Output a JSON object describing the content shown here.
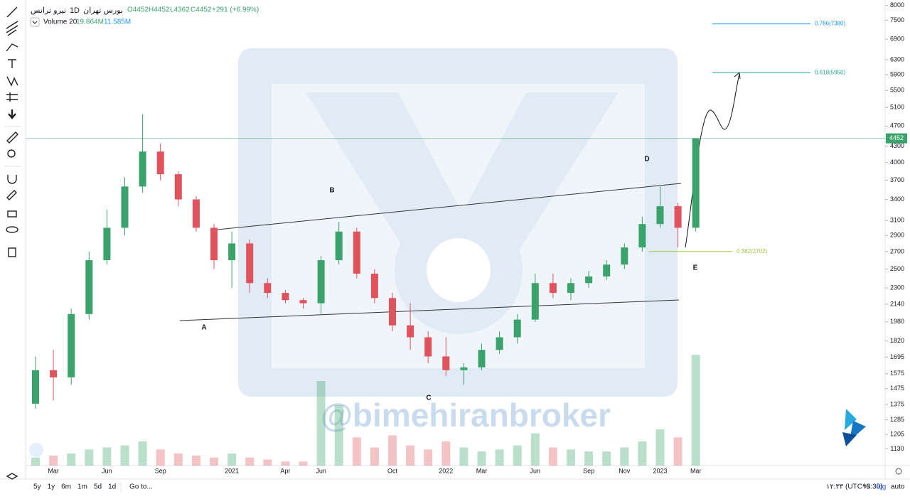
{
  "header": {
    "exchange": "بورس تهران",
    "symbol": "نیرو ترانس",
    "interval": "1D",
    "open": "O4452",
    "high": "H4452",
    "low": "L4362",
    "close": "C4452",
    "change": "+291 (+6.99%)",
    "volume_label": "Volume 20",
    "volume_value": "19.864M",
    "volume_ma": "11.585M"
  },
  "watermark": "@bimehiranbroker",
  "bottom_bar": {
    "ranges": [
      "5y",
      "1y",
      "6m",
      "1m",
      "5d",
      "1d"
    ],
    "goto": "Go to...",
    "clock": "۱۲:۳۳ (UTC+3:30)",
    "percent": "%",
    "log": "log",
    "auto": "auto"
  },
  "chart_data": {
    "type": "candlestick",
    "log_scale": true,
    "up_color": "#3aa36b",
    "down_color": "#e0525c",
    "categories": [
      null,
      "Mar",
      null,
      null,
      "Jun",
      null,
      null,
      "Sep",
      null,
      null,
      null,
      "2021",
      null,
      null,
      "Apr",
      null,
      "Jun",
      null,
      null,
      null,
      "Oct",
      null,
      null,
      "2022",
      null,
      "Mar",
      null,
      null,
      "Jun",
      null,
      null,
      "Sep",
      null,
      "Nov",
      null,
      "2023",
      null,
      "Mar"
    ],
    "candles": [
      {
        "open": 1380,
        "high": 1700,
        "low": 1350,
        "close": 1600
      },
      {
        "open": 1600,
        "high": 1750,
        "low": 1400,
        "close": 1550
      },
      {
        "open": 1550,
        "high": 2100,
        "low": 1500,
        "close": 2050
      },
      {
        "open": 2050,
        "high": 2700,
        "low": 2000,
        "close": 2600
      },
      {
        "open": 2600,
        "high": 3250,
        "low": 2550,
        "close": 3000
      },
      {
        "open": 3000,
        "high": 3750,
        "low": 2900,
        "close": 3600
      },
      {
        "open": 3600,
        "high": 4950,
        "low": 3500,
        "close": 4200
      },
      {
        "open": 4200,
        "high": 4350,
        "low": 3700,
        "close": 3800
      },
      {
        "open": 3800,
        "high": 3850,
        "low": 3300,
        "close": 3400
      },
      {
        "open": 3400,
        "high": 3450,
        "low": 2950,
        "close": 3000
      },
      {
        "open": 3000,
        "high": 3050,
        "low": 2500,
        "close": 2600
      },
      {
        "open": 2600,
        "high": 2950,
        "low": 2300,
        "close": 2800
      },
      {
        "open": 2800,
        "high": 2850,
        "low": 2250,
        "close": 2350
      },
      {
        "open": 2350,
        "high": 2400,
        "low": 2200,
        "close": 2250
      },
      {
        "open": 2250,
        "high": 2280,
        "low": 2150,
        "close": 2180
      },
      {
        "open": 2180,
        "high": 2200,
        "low": 2100,
        "close": 2150
      },
      {
        "open": 2150,
        "high": 2650,
        "low": 2050,
        "close": 2600
      },
      {
        "open": 2600,
        "high": 3080,
        "low": 2550,
        "close": 2950
      },
      {
        "open": 2950,
        "high": 3000,
        "low": 2400,
        "close": 2450
      },
      {
        "open": 2450,
        "high": 2500,
        "low": 2150,
        "close": 2200
      },
      {
        "open": 2200,
        "high": 2250,
        "low": 1900,
        "close": 1950
      },
      {
        "open": 1950,
        "high": 2150,
        "low": 1750,
        "close": 1850
      },
      {
        "open": 1850,
        "high": 1900,
        "low": 1650,
        "close": 1700
      },
      {
        "open": 1700,
        "high": 1850,
        "low": 1560,
        "close": 1600
      },
      {
        "open": 1600,
        "high": 1650,
        "low": 1500,
        "close": 1620
      },
      {
        "open": 1620,
        "high": 1800,
        "low": 1600,
        "close": 1750
      },
      {
        "open": 1750,
        "high": 1900,
        "low": 1720,
        "close": 1850
      },
      {
        "open": 1850,
        "high": 2050,
        "low": 1800,
        "close": 2000
      },
      {
        "open": 2000,
        "high": 2450,
        "low": 1980,
        "close": 2350
      },
      {
        "open": 2350,
        "high": 2450,
        "low": 2200,
        "close": 2250
      },
      {
        "open": 2250,
        "high": 2400,
        "low": 2180,
        "close": 2350
      },
      {
        "open": 2350,
        "high": 2480,
        "low": 2300,
        "close": 2420
      },
      {
        "open": 2420,
        "high": 2600,
        "low": 2380,
        "close": 2550
      },
      {
        "open": 2550,
        "high": 2800,
        "low": 2500,
        "close": 2750
      },
      {
        "open": 2750,
        "high": 3150,
        "low": 2700,
        "close": 3050
      },
      {
        "open": 3050,
        "high": 3600,
        "low": 3000,
        "close": 3300
      },
      {
        "open": 3300,
        "high": 3350,
        "low": 2750,
        "close": 3000
      },
      {
        "open": 3000,
        "high": 4452,
        "low": 2950,
        "close": 4452
      }
    ],
    "volume": [
      4,
      5,
      6,
      8,
      9,
      10,
      12,
      8,
      6,
      5,
      4,
      6,
      4,
      3,
      2,
      2,
      42,
      30,
      14,
      9,
      15,
      10,
      8,
      12,
      9,
      7,
      8,
      10,
      16,
      9,
      8,
      7,
      7,
      9,
      12,
      18,
      14,
      55
    ],
    "volume_ylim": [
      0,
      60
    ],
    "ylim": [
      1050,
      8200
    ],
    "yticks": [
      8000,
      7500,
      6900,
      6300,
      5900,
      5500,
      5100,
      4700,
      4300,
      4000,
      3700,
      3400,
      3100,
      2900,
      2700,
      2500,
      2300,
      2140,
      1980,
      1820,
      1695,
      1575,
      1475,
      1375,
      1285,
      1205,
      1130
    ],
    "last_price": 4452,
    "last_price_color": "#3aa36b",
    "fib_levels": [
      {
        "value": 7380,
        "label": "0.786(7380)",
        "color": "#2196f3"
      },
      {
        "value": 5950,
        "label": "0.618(5950)",
        "color": "#26a69a"
      },
      {
        "value": 2702,
        "label": "0.382(2702)",
        "color": "#9bc53d"
      }
    ],
    "wave_labels": [
      "A",
      "B",
      "C",
      "D",
      "E"
    ]
  }
}
